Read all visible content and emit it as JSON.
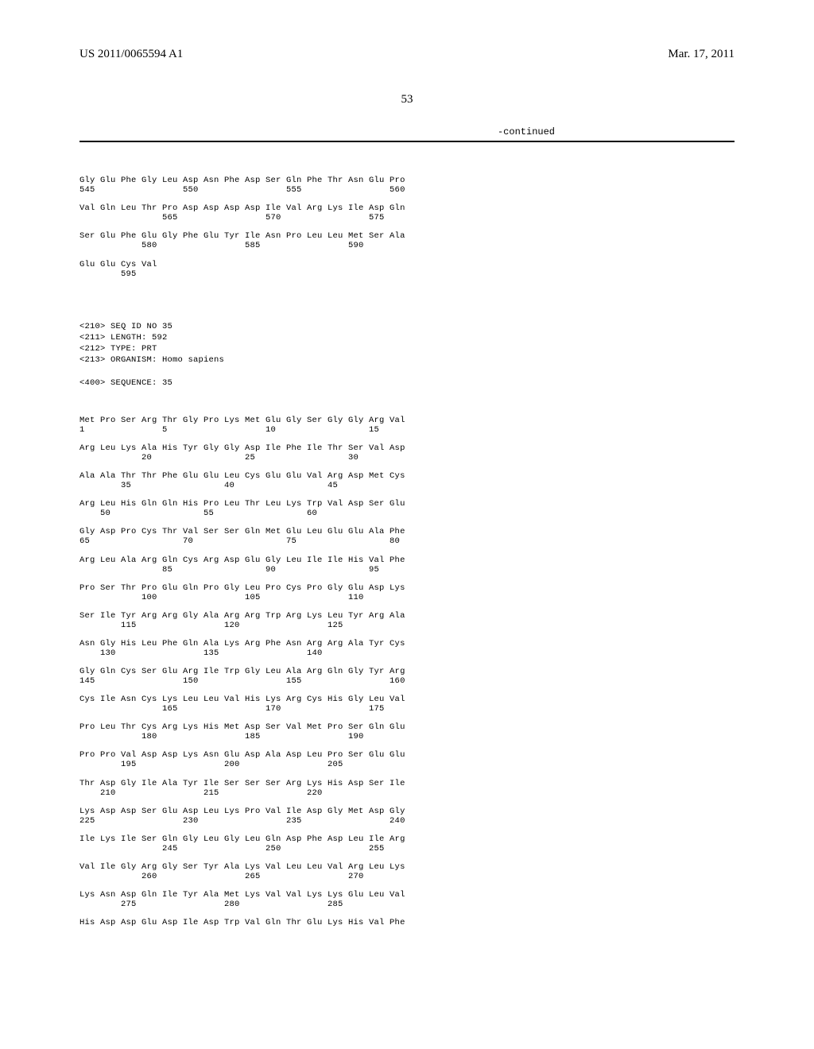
{
  "header": {
    "publication_number": "US 2011/0065594 A1",
    "date": "Mar. 17, 2011"
  },
  "page_number": "53",
  "continued_label": "-continued",
  "seq34_tail": [
    {
      "residues": "Gly Glu Phe Gly Leu Asp Asn Phe Asp Ser Gln Phe Thr Asn Glu Pro",
      "positions": "545                 550                 555                 560"
    },
    {
      "residues": "Val Gln Leu Thr Pro Asp Asp Asp Asp Ile Val Arg Lys Ile Asp Gln",
      "positions": "                565                 570                 575"
    },
    {
      "residues": "Ser Glu Phe Glu Gly Phe Glu Tyr Ile Asn Pro Leu Leu Met Ser Ala",
      "positions": "            580                 585                 590"
    },
    {
      "residues": "Glu Glu Cys Val",
      "positions": "        595"
    }
  ],
  "seq35_header": [
    "<210> SEQ ID NO 35",
    "<211> LENGTH: 592",
    "<212> TYPE: PRT",
    "<213> ORGANISM: Homo sapiens",
    "",
    "<400> SEQUENCE: 35"
  ],
  "seq35_rows": [
    {
      "residues": "Met Pro Ser Arg Thr Gly Pro Lys Met Glu Gly Ser Gly Gly Arg Val",
      "positions": "1               5                   10                  15"
    },
    {
      "residues": "Arg Leu Lys Ala His Tyr Gly Gly Asp Ile Phe Ile Thr Ser Val Asp",
      "positions": "            20                  25                  30"
    },
    {
      "residues": "Ala Ala Thr Thr Phe Glu Glu Leu Cys Glu Glu Val Arg Asp Met Cys",
      "positions": "        35                  40                  45"
    },
    {
      "residues": "Arg Leu His Gln Gln His Pro Leu Thr Leu Lys Trp Val Asp Ser Glu",
      "positions": "    50                  55                  60"
    },
    {
      "residues": "Gly Asp Pro Cys Thr Val Ser Ser Gln Met Glu Leu Glu Glu Ala Phe",
      "positions": "65                  70                  75                  80"
    },
    {
      "residues": "Arg Leu Ala Arg Gln Cys Arg Asp Glu Gly Leu Ile Ile His Val Phe",
      "positions": "                85                  90                  95"
    },
    {
      "residues": "Pro Ser Thr Pro Glu Gln Pro Gly Leu Pro Cys Pro Gly Glu Asp Lys",
      "positions": "            100                 105                 110"
    },
    {
      "residues": "Ser Ile Tyr Arg Arg Gly Ala Arg Arg Trp Arg Lys Leu Tyr Arg Ala",
      "positions": "        115                 120                 125"
    },
    {
      "residues": "Asn Gly His Leu Phe Gln Ala Lys Arg Phe Asn Arg Arg Ala Tyr Cys",
      "positions": "    130                 135                 140"
    },
    {
      "residues": "Gly Gln Cys Ser Glu Arg Ile Trp Gly Leu Ala Arg Gln Gly Tyr Arg",
      "positions": "145                 150                 155                 160"
    },
    {
      "residues": "Cys Ile Asn Cys Lys Leu Leu Val His Lys Arg Cys His Gly Leu Val",
      "positions": "                165                 170                 175"
    },
    {
      "residues": "Pro Leu Thr Cys Arg Lys His Met Asp Ser Val Met Pro Ser Gln Glu",
      "positions": "            180                 185                 190"
    },
    {
      "residues": "Pro Pro Val Asp Asp Lys Asn Glu Asp Ala Asp Leu Pro Ser Glu Glu",
      "positions": "        195                 200                 205"
    },
    {
      "residues": "Thr Asp Gly Ile Ala Tyr Ile Ser Ser Ser Arg Lys His Asp Ser Ile",
      "positions": "    210                 215                 220"
    },
    {
      "residues": "Lys Asp Asp Ser Glu Asp Leu Lys Pro Val Ile Asp Gly Met Asp Gly",
      "positions": "225                 230                 235                 240"
    },
    {
      "residues": "Ile Lys Ile Ser Gln Gly Leu Gly Leu Gln Asp Phe Asp Leu Ile Arg",
      "positions": "                245                 250                 255"
    },
    {
      "residues": "Val Ile Gly Arg Gly Ser Tyr Ala Lys Val Leu Leu Val Arg Leu Lys",
      "positions": "            260                 265                 270"
    },
    {
      "residues": "Lys Asn Asp Gln Ile Tyr Ala Met Lys Val Val Lys Lys Glu Leu Val",
      "positions": "        275                 280                 285"
    },
    {
      "residues": "His Asp Asp Glu Asp Ile Asp Trp Val Gln Thr Glu Lys His Val Phe",
      "positions": ""
    }
  ]
}
